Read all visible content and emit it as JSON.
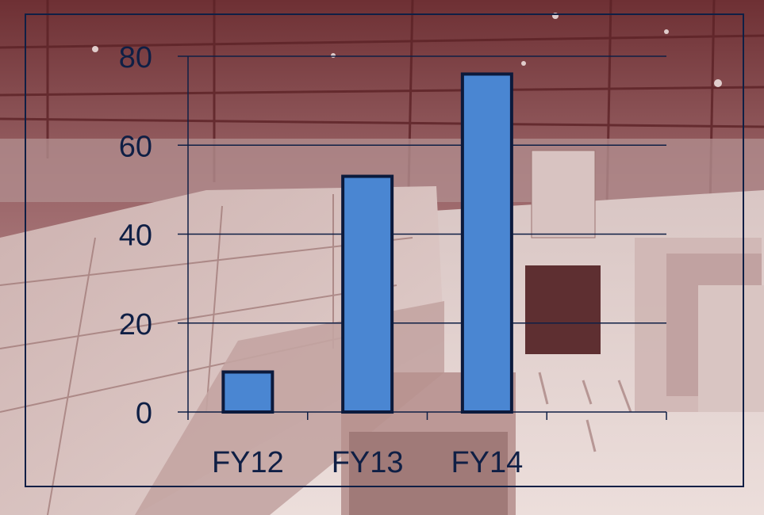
{
  "colors": {
    "axis": "#0f1f45",
    "bar_fill": "#4a86d2",
    "bar_stroke": "#0c1a3c",
    "tick_text": "#0f1f45",
    "photo_tint": "#8a4a4e"
  },
  "background_icon": "warehouse-photo",
  "chart_data": {
    "type": "bar",
    "categories": [
      "FY12",
      "FY13",
      "FY14"
    ],
    "values": [
      9,
      53,
      76
    ],
    "yticks": [
      0,
      20,
      40,
      60,
      80
    ],
    "ylim": [
      0,
      80
    ],
    "grid": true,
    "legend": "none"
  }
}
